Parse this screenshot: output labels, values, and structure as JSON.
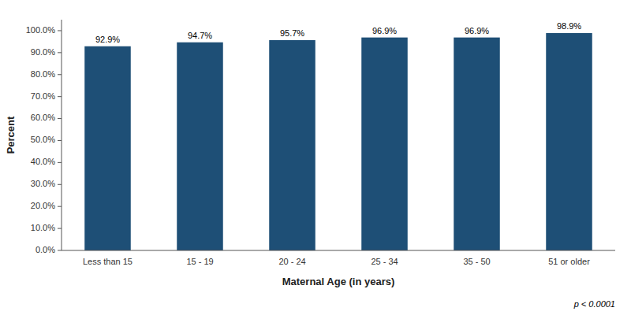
{
  "chart_data": {
    "type": "bar",
    "categories": [
      "Less than 15",
      "15 - 19",
      "20 - 24",
      "25 - 34",
      "35 - 50",
      "51 or older"
    ],
    "values": [
      92.9,
      94.7,
      95.7,
      96.9,
      96.9,
      98.9
    ],
    "value_labels": [
      "92.9%",
      "94.7%",
      "95.7%",
      "96.9%",
      "96.9%",
      "98.9%"
    ],
    "data_labels": true,
    "color": "#1e4f76",
    "xlabel": "Maternal Age (in years)",
    "ylabel": "Percent",
    "ylim": [
      0,
      105
    ],
    "yticks": [
      {
        "value": 0,
        "label": "0.0%"
      },
      {
        "value": 10,
        "label": "10.0%"
      },
      {
        "value": 20,
        "label": "20.0%"
      },
      {
        "value": 30,
        "label": "30.0%"
      },
      {
        "value": 40,
        "label": "40.0%"
      },
      {
        "value": 50,
        "label": "50.0%"
      },
      {
        "value": 60,
        "label": "60.0%"
      },
      {
        "value": 70,
        "label": "70.0%"
      },
      {
        "value": 80,
        "label": "80.0%"
      },
      {
        "value": 90,
        "label": "90.0%"
      },
      {
        "value": 100,
        "label": "100.0%"
      }
    ],
    "grid": false,
    "annotation": "p < 0.0001"
  }
}
